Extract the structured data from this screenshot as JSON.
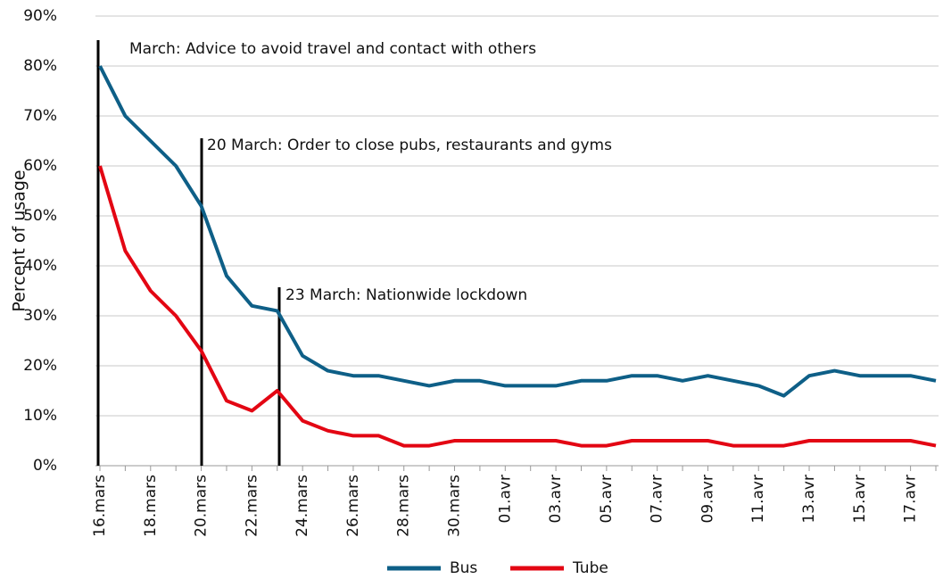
{
  "chart_data": {
    "type": "line",
    "y_axis_label": "Percent of usage",
    "categories": [
      "16.mars",
      null,
      "18.mars",
      null,
      "20.mars",
      null,
      "22.mars",
      null,
      "24.mars",
      null,
      "26.mars",
      null,
      "28.mars",
      null,
      "30.mars",
      null,
      "01.avr",
      null,
      "03.avr",
      null,
      "05.avr",
      null,
      "07.avr",
      null,
      "09.avr",
      null,
      "11.avr",
      null,
      "13.avr",
      null,
      "15.avr",
      null,
      "17.avr",
      null
    ],
    "series": [
      {
        "name": "Bus",
        "color": "#0e5f87",
        "values": [
          80,
          70,
          65,
          60,
          52,
          38,
          32,
          31,
          22,
          19,
          18,
          18,
          17,
          16,
          17,
          17,
          16,
          16,
          16,
          17,
          17,
          18,
          18,
          17,
          18,
          17,
          16,
          14,
          18,
          19,
          18,
          18,
          18,
          17
        ]
      },
      {
        "name": "Tube",
        "color": "#e30613",
        "values": [
          60,
          43,
          35,
          30,
          23,
          13,
          11,
          15,
          9,
          7,
          6,
          6,
          4,
          4,
          5,
          5,
          5,
          5,
          5,
          4,
          4,
          5,
          5,
          5,
          5,
          4,
          4,
          4,
          5,
          5,
          5,
          5,
          5,
          4
        ]
      }
    ],
    "ylim": [
      0,
      90
    ],
    "yticks": [
      {
        "value": 0,
        "label": "0%"
      },
      {
        "value": 10,
        "label": "10%"
      },
      {
        "value": 20,
        "label": "20%"
      },
      {
        "value": 30,
        "label": "30%"
      },
      {
        "value": 40,
        "label": "40%"
      },
      {
        "value": 50,
        "label": "50%"
      },
      {
        "value": 60,
        "label": "60%"
      },
      {
        "value": 70,
        "label": "70%"
      },
      {
        "value": 80,
        "label": "80%"
      },
      {
        "value": 90,
        "label": "90%"
      }
    ],
    "grid": true,
    "legend": "bottom",
    "annotations": [
      "March: Advice to avoid travel and contact with others",
      "20 March: Order to close pubs, restaurants and gyms",
      "23 March: Nationwide lockdown"
    ]
  }
}
